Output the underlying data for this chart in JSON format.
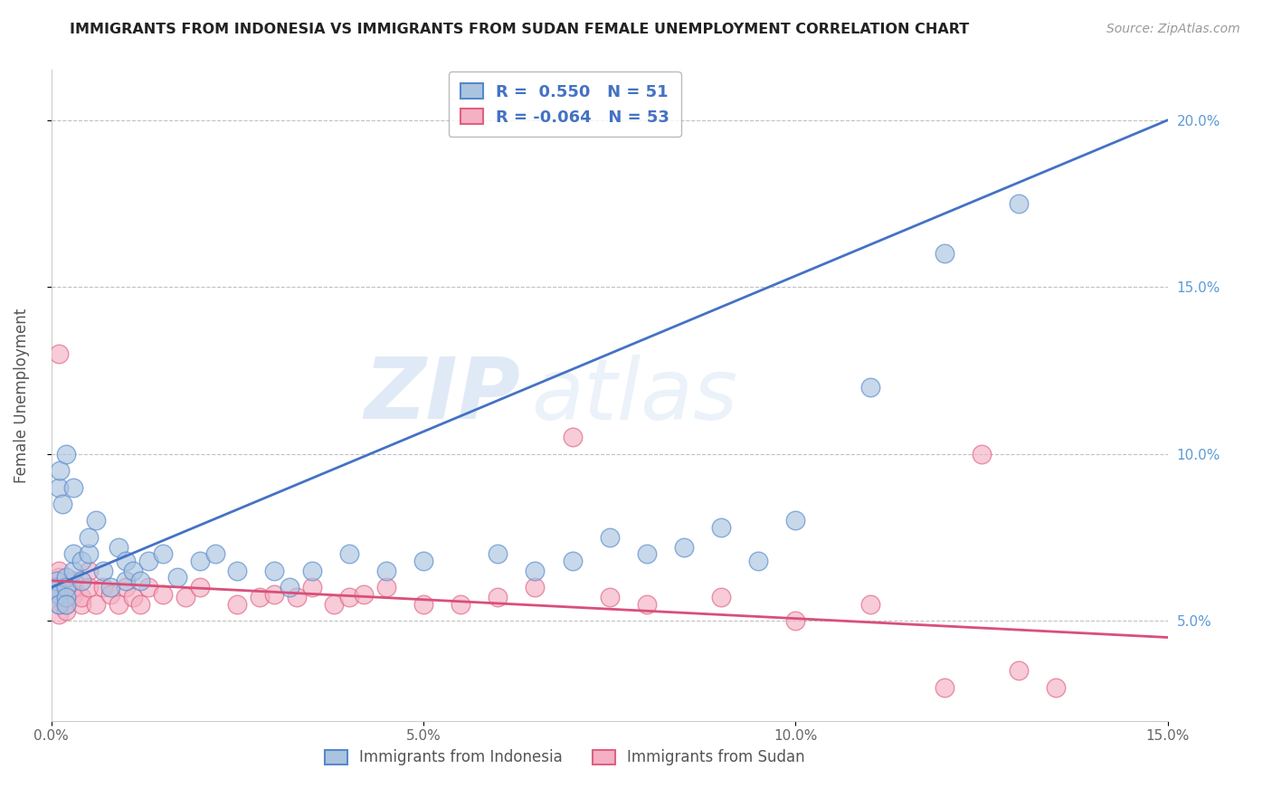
{
  "title": "IMMIGRANTS FROM INDONESIA VS IMMIGRANTS FROM SUDAN FEMALE UNEMPLOYMENT CORRELATION CHART",
  "source": "Source: ZipAtlas.com",
  "ylabel": "Female Unemployment",
  "xlim": [
    0.0,
    0.15
  ],
  "ylim": [
    0.02,
    0.215
  ],
  "x_ticks": [
    0.0,
    0.05,
    0.1,
    0.15
  ],
  "x_tick_labels": [
    "0.0%",
    "5.0%",
    "10.0%",
    "15.0%"
  ],
  "y_ticks": [
    0.05,
    0.1,
    0.15,
    0.2
  ],
  "y_tick_labels": [
    "5.0%",
    "10.0%",
    "15.0%",
    "20.0%"
  ],
  "indonesia_color": "#aac4e0",
  "indonesia_edge": "#5588cc",
  "sudan_color": "#f4b0c4",
  "sudan_edge": "#e06080",
  "trend_indonesia_color": "#4472c4",
  "trend_sudan_color": "#d94f7a",
  "legend_label_indonesia": "Immigrants from Indonesia",
  "legend_label_sudan": "Immigrants from Sudan",
  "watermark_zip": "ZIP",
  "watermark_atlas": "atlas",
  "indonesia_x": [
    0.0005,
    0.0008,
    0.001,
    0.001,
    0.001,
    0.0012,
    0.0015,
    0.002,
    0.002,
    0.002,
    0.002,
    0.002,
    0.003,
    0.003,
    0.003,
    0.004,
    0.004,
    0.005,
    0.005,
    0.006,
    0.007,
    0.008,
    0.009,
    0.01,
    0.01,
    0.011,
    0.012,
    0.013,
    0.015,
    0.017,
    0.02,
    0.022,
    0.025,
    0.03,
    0.032,
    0.035,
    0.04,
    0.045,
    0.05,
    0.06,
    0.065,
    0.07,
    0.075,
    0.08,
    0.085,
    0.09,
    0.095,
    0.1,
    0.11,
    0.12,
    0.13
  ],
  "indonesia_y": [
    0.06,
    0.062,
    0.058,
    0.055,
    0.09,
    0.095,
    0.085,
    0.063,
    0.06,
    0.057,
    0.055,
    0.1,
    0.065,
    0.07,
    0.09,
    0.068,
    0.062,
    0.07,
    0.075,
    0.08,
    0.065,
    0.06,
    0.072,
    0.068,
    0.062,
    0.065,
    0.062,
    0.068,
    0.07,
    0.063,
    0.068,
    0.07,
    0.065,
    0.065,
    0.06,
    0.065,
    0.07,
    0.065,
    0.068,
    0.07,
    0.065,
    0.068,
    0.075,
    0.07,
    0.072,
    0.078,
    0.068,
    0.08,
    0.12,
    0.16,
    0.175
  ],
  "sudan_x": [
    0.0005,
    0.0008,
    0.001,
    0.001,
    0.001,
    0.001,
    0.001,
    0.001,
    0.002,
    0.002,
    0.002,
    0.002,
    0.003,
    0.003,
    0.003,
    0.004,
    0.004,
    0.005,
    0.005,
    0.006,
    0.007,
    0.008,
    0.009,
    0.01,
    0.011,
    0.012,
    0.013,
    0.015,
    0.018,
    0.02,
    0.025,
    0.028,
    0.03,
    0.033,
    0.035,
    0.038,
    0.04,
    0.042,
    0.045,
    0.05,
    0.055,
    0.06,
    0.065,
    0.07,
    0.075,
    0.08,
    0.09,
    0.1,
    0.11,
    0.12,
    0.125,
    0.13,
    0.135
  ],
  "sudan_y": [
    0.06,
    0.058,
    0.063,
    0.057,
    0.055,
    0.052,
    0.065,
    0.13,
    0.06,
    0.055,
    0.057,
    0.053,
    0.062,
    0.058,
    0.06,
    0.055,
    0.057,
    0.065,
    0.06,
    0.055,
    0.06,
    0.058,
    0.055,
    0.06,
    0.057,
    0.055,
    0.06,
    0.058,
    0.057,
    0.06,
    0.055,
    0.057,
    0.058,
    0.057,
    0.06,
    0.055,
    0.057,
    0.058,
    0.06,
    0.055,
    0.055,
    0.057,
    0.06,
    0.105,
    0.057,
    0.055,
    0.057,
    0.05,
    0.055,
    0.03,
    0.1,
    0.035,
    0.03
  ],
  "trend_indonesia_x0": 0.0,
  "trend_indonesia_y0": 0.06,
  "trend_indonesia_x1": 0.15,
  "trend_indonesia_y1": 0.2,
  "trend_sudan_x0": 0.0,
  "trend_sudan_y0": 0.062,
  "trend_sudan_x1": 0.15,
  "trend_sudan_y1": 0.045
}
